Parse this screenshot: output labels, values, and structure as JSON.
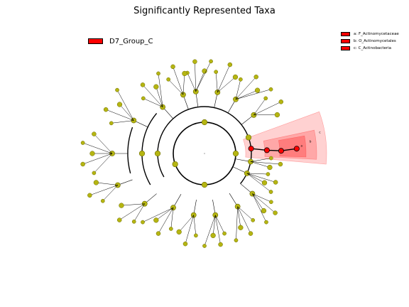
{
  "title": "Significantly Represented Taxa",
  "colors": {
    "node_fill": "#b5b512",
    "node_stroke": "#6b6b00",
    "highlight": "#ff0000",
    "edge": "#000000"
  },
  "group_legend": {
    "label": "D7_Group_C",
    "color": "#ff0000"
  },
  "taxa_legend": [
    {
      "label": "a: F_Actinomycetaceae",
      "color": "#ff0000"
    },
    {
      "label": "b: O_Actinomycetales",
      "color": "#ff0000"
    },
    {
      "label": "c: C_Actinobacteria",
      "color": "#ff0000"
    }
  ],
  "highlighted_taxa": [
    {
      "letter": "a",
      "name": "Actinomycetaceae",
      "rank": "family"
    },
    {
      "letter": "b",
      "name": "Actinomycetales",
      "rank": "order"
    },
    {
      "letter": "c",
      "name": "Actinobacteria",
      "rank": "class"
    }
  ]
}
